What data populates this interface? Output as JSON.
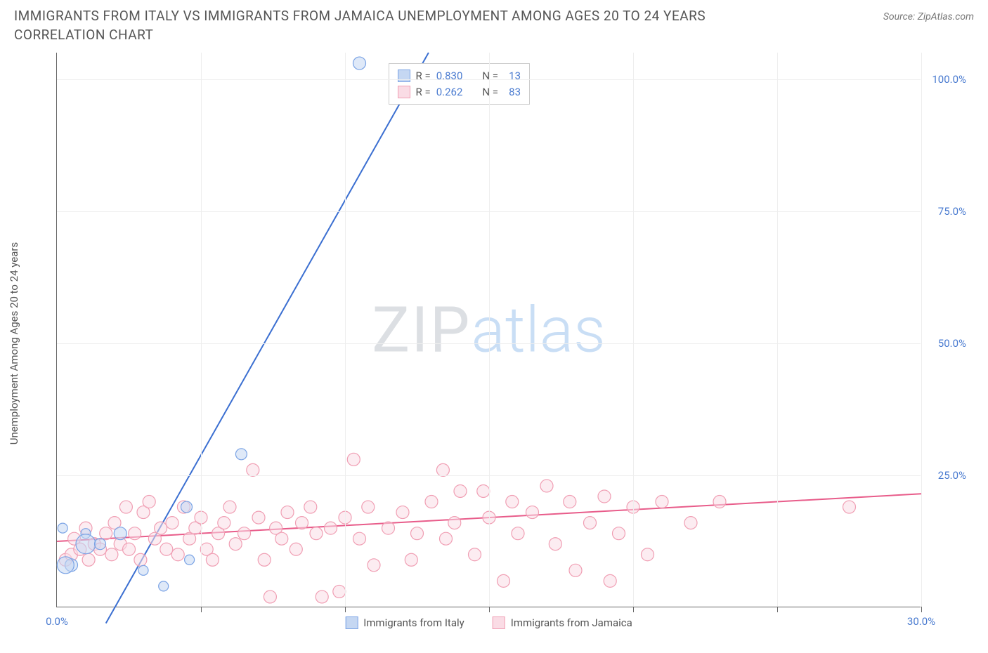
{
  "header": {
    "title": "IMMIGRANTS FROM ITALY VS IMMIGRANTS FROM JAMAICA UNEMPLOYMENT AMONG AGES 20 TO 24 YEARS CORRELATION CHART",
    "source": "Source: ZipAtlas.com"
  },
  "chart": {
    "type": "scatter",
    "y_axis_label": "Unemployment Among Ages 20 to 24 years",
    "watermark_a": "ZIP",
    "watermark_b": "atlas",
    "xlim": [
      0,
      30
    ],
    "ylim": [
      0,
      105
    ],
    "x_ticks": [
      5,
      10,
      15,
      20,
      25,
      30
    ],
    "x_tick_labels": {
      "0": "0.0%",
      "30": "30.0%"
    },
    "y_ticks_right": [
      25,
      50,
      75,
      100
    ],
    "y_tick_labels": {
      "25": "25.0%",
      "50": "50.0%",
      "75": "75.0%",
      "100": "100.0%"
    },
    "background_color": "#ffffff",
    "grid_color": "#eeeeee",
    "axis_color": "#666666",
    "series": {
      "italy": {
        "label": "Immigrants from Italy",
        "color_stroke": "#7aa3e5",
        "color_fill": "#c5d7f2",
        "line_color": "#3b6fd1",
        "marker_radius": 9,
        "r_value": "0.830",
        "n_value": "13",
        "trend": {
          "x1": 1.7,
          "y1": -3,
          "x2": 12.9,
          "y2": 105
        },
        "points": [
          {
            "x": 10.5,
            "y": 103,
            "r": 9
          },
          {
            "x": 6.4,
            "y": 29,
            "r": 8
          },
          {
            "x": 4.5,
            "y": 19,
            "r": 8
          },
          {
            "x": 2.2,
            "y": 14,
            "r": 9
          },
          {
            "x": 1.0,
            "y": 14,
            "r": 7
          },
          {
            "x": 1.0,
            "y": 12,
            "r": 14
          },
          {
            "x": 0.5,
            "y": 8,
            "r": 9
          },
          {
            "x": 4.6,
            "y": 9,
            "r": 7
          },
          {
            "x": 3.7,
            "y": 4,
            "r": 7
          },
          {
            "x": 3.0,
            "y": 7,
            "r": 7
          },
          {
            "x": 0.3,
            "y": 8,
            "r": 12
          },
          {
            "x": 0.2,
            "y": 15,
            "r": 7
          },
          {
            "x": 1.5,
            "y": 12,
            "r": 8
          }
        ]
      },
      "jamaica": {
        "label": "Immigrants from Jamaica",
        "color_stroke": "#f09eb3",
        "color_fill": "#fadce5",
        "line_color": "#e85c8a",
        "marker_radius": 9,
        "r_value": "0.262",
        "n_value": "83",
        "trend": {
          "x1": 0,
          "y1": 12.5,
          "x2": 30,
          "y2": 21.5
        },
        "points": [
          {
            "x": 0.3,
            "y": 9
          },
          {
            "x": 0.5,
            "y": 10
          },
          {
            "x": 0.6,
            "y": 13
          },
          {
            "x": 0.8,
            "y": 11
          },
          {
            "x": 1.0,
            "y": 15
          },
          {
            "x": 1.1,
            "y": 9
          },
          {
            "x": 1.3,
            "y": 12
          },
          {
            "x": 1.5,
            "y": 11
          },
          {
            "x": 1.7,
            "y": 14
          },
          {
            "x": 1.9,
            "y": 10
          },
          {
            "x": 2.0,
            "y": 16
          },
          {
            "x": 2.2,
            "y": 12
          },
          {
            "x": 2.4,
            "y": 19
          },
          {
            "x": 2.5,
            "y": 11
          },
          {
            "x": 2.7,
            "y": 14
          },
          {
            "x": 2.9,
            "y": 9
          },
          {
            "x": 3.0,
            "y": 18
          },
          {
            "x": 3.2,
            "y": 20
          },
          {
            "x": 3.4,
            "y": 13
          },
          {
            "x": 3.6,
            "y": 15
          },
          {
            "x": 3.8,
            "y": 11
          },
          {
            "x": 4.0,
            "y": 16
          },
          {
            "x": 4.2,
            "y": 10
          },
          {
            "x": 4.4,
            "y": 19
          },
          {
            "x": 4.6,
            "y": 13
          },
          {
            "x": 4.8,
            "y": 15
          },
          {
            "x": 5.0,
            "y": 17
          },
          {
            "x": 5.2,
            "y": 11
          },
          {
            "x": 5.4,
            "y": 9
          },
          {
            "x": 5.6,
            "y": 14
          },
          {
            "x": 5.8,
            "y": 16
          },
          {
            "x": 6.0,
            "y": 19
          },
          {
            "x": 6.2,
            "y": 12
          },
          {
            "x": 6.5,
            "y": 14
          },
          {
            "x": 6.8,
            "y": 26
          },
          {
            "x": 7.0,
            "y": 17
          },
          {
            "x": 7.2,
            "y": 9
          },
          {
            "x": 7.4,
            "y": 2
          },
          {
            "x": 7.6,
            "y": 15
          },
          {
            "x": 7.8,
            "y": 13
          },
          {
            "x": 8.0,
            "y": 18
          },
          {
            "x": 8.3,
            "y": 11
          },
          {
            "x": 8.5,
            "y": 16
          },
          {
            "x": 8.8,
            "y": 19
          },
          {
            "x": 9.0,
            "y": 14
          },
          {
            "x": 9.2,
            "y": 2
          },
          {
            "x": 9.5,
            "y": 15
          },
          {
            "x": 9.8,
            "y": 3
          },
          {
            "x": 10.0,
            "y": 17
          },
          {
            "x": 10.3,
            "y": 28
          },
          {
            "x": 10.5,
            "y": 13
          },
          {
            "x": 10.8,
            "y": 19
          },
          {
            "x": 11.0,
            "y": 8
          },
          {
            "x": 11.5,
            "y": 15
          },
          {
            "x": 12.0,
            "y": 18
          },
          {
            "x": 12.3,
            "y": 9
          },
          {
            "x": 12.5,
            "y": 14
          },
          {
            "x": 13.0,
            "y": 20
          },
          {
            "x": 13.4,
            "y": 26
          },
          {
            "x": 13.5,
            "y": 13
          },
          {
            "x": 13.8,
            "y": 16
          },
          {
            "x": 14.0,
            "y": 22
          },
          {
            "x": 14.5,
            "y": 10
          },
          {
            "x": 14.8,
            "y": 22
          },
          {
            "x": 15.0,
            "y": 17
          },
          {
            "x": 15.5,
            "y": 5
          },
          {
            "x": 15.8,
            "y": 20
          },
          {
            "x": 16.0,
            "y": 14
          },
          {
            "x": 16.5,
            "y": 18
          },
          {
            "x": 17.0,
            "y": 23
          },
          {
            "x": 17.3,
            "y": 12
          },
          {
            "x": 17.8,
            "y": 20
          },
          {
            "x": 18.0,
            "y": 7
          },
          {
            "x": 18.5,
            "y": 16
          },
          {
            "x": 19.0,
            "y": 21
          },
          {
            "x": 19.2,
            "y": 5
          },
          {
            "x": 19.5,
            "y": 14
          },
          {
            "x": 20.0,
            "y": 19
          },
          {
            "x": 20.5,
            "y": 10
          },
          {
            "x": 21.0,
            "y": 20
          },
          {
            "x": 22.0,
            "y": 16
          },
          {
            "x": 23.0,
            "y": 20
          },
          {
            "x": 27.5,
            "y": 19
          }
        ]
      }
    },
    "stats_box": {
      "r_label": "R =",
      "n_label": "N ="
    }
  }
}
